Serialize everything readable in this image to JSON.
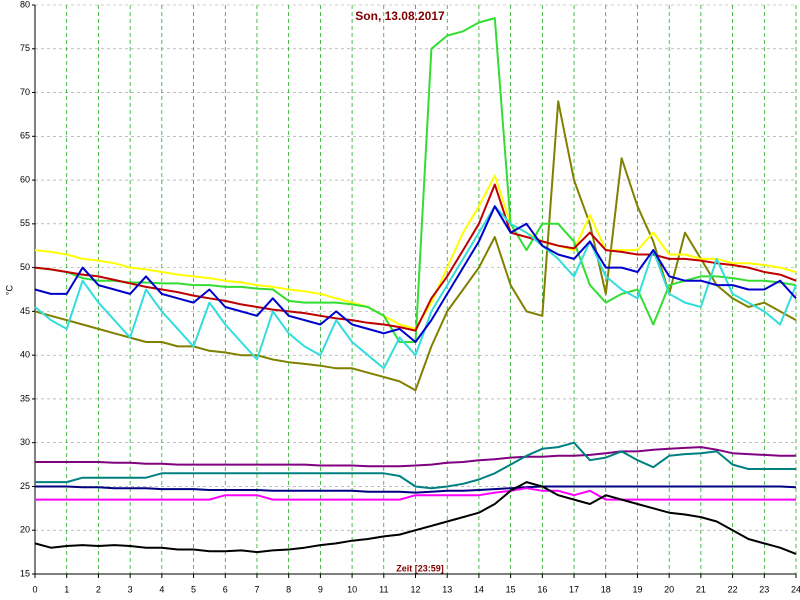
{
  "chart_data": {
    "type": "line",
    "title": "Son, 13.08.2017",
    "y_label": "°C",
    "x_label": "Zeit [23:59]",
    "xlim": [
      0,
      24
    ],
    "ylim": [
      15,
      80
    ],
    "xticks": [
      0,
      1,
      2,
      3,
      4,
      5,
      6,
      7,
      8,
      9,
      10,
      11,
      12,
      13,
      14,
      15,
      16,
      17,
      18,
      19,
      20,
      21,
      22,
      23,
      24
    ],
    "yticks": [
      15,
      20,
      25,
      30,
      35,
      40,
      45,
      50,
      55,
      60,
      65,
      70,
      75,
      80
    ],
    "grid": true,
    "x": [
      0,
      0.5,
      1,
      1.5,
      2,
      2.5,
      3,
      3.5,
      4,
      4.5,
      5,
      5.5,
      6,
      6.5,
      7,
      7.5,
      8,
      8.5,
      9,
      9.5,
      10,
      10.5,
      11,
      11.5,
      12,
      12.5,
      13,
      13.5,
      14,
      14.5,
      15,
      15.5,
      16,
      16.5,
      17,
      17.5,
      18,
      18.5,
      19,
      19.5,
      20,
      20.5,
      21,
      21.5,
      22,
      22.5,
      23,
      23.5,
      24
    ],
    "series": [
      {
        "color": "#808000",
        "values": [
          45,
          44.5,
          44,
          43.5,
          43,
          42.5,
          42,
          41.5,
          41.5,
          41,
          41,
          40.5,
          40.3,
          40,
          40,
          39.5,
          39.2,
          39,
          38.8,
          38.5,
          38.5,
          38,
          37.5,
          37,
          36,
          41,
          45,
          47.5,
          50,
          53.5,
          48,
          45,
          44.5,
          69,
          60,
          55,
          47,
          62.5,
          57,
          53,
          47,
          54,
          51,
          48,
          46.5,
          45.5,
          46,
          45,
          44
        ]
      },
      {
        "color": "#ffff00",
        "values": [
          52,
          51.8,
          51.5,
          51,
          50.8,
          50.5,
          50,
          49.8,
          49.5,
          49.2,
          49,
          48.8,
          48.5,
          48.3,
          48,
          47.8,
          47.5,
          47.3,
          47,
          46.5,
          46,
          45.5,
          44.5,
          43.5,
          43,
          46,
          50,
          54,
          57,
          60.5,
          55,
          54,
          53,
          52.5,
          52,
          56,
          52,
          52,
          52,
          54,
          51.5,
          51.5,
          51,
          51,
          50.5,
          50.5,
          50.3,
          50,
          49.5
        ]
      },
      {
        "color": "#33dd33",
        "values": [
          50,
          49.8,
          49.5,
          48.8,
          48.5,
          48.5,
          48.3,
          48.3,
          48.2,
          48.2,
          48,
          48,
          47.8,
          47.8,
          47.6,
          47.5,
          46.2,
          46,
          46,
          46,
          45.8,
          45.5,
          44.5,
          41.5,
          41.5,
          75,
          76.5,
          77,
          78,
          78.5,
          55,
          52,
          55,
          55,
          53,
          48,
          46,
          47,
          47.5,
          43.5,
          48,
          48.5,
          49,
          49,
          48.8,
          48.5,
          48.5,
          48.3,
          48
        ]
      },
      {
        "color": "#c00000",
        "values": [
          50,
          49.8,
          49.5,
          49.2,
          49,
          48.6,
          48.2,
          47.8,
          47.5,
          47.2,
          46.8,
          46.5,
          46.2,
          45.8,
          45.5,
          45.2,
          45,
          44.8,
          44.5,
          44.2,
          44,
          43.7,
          43.5,
          43.2,
          42.8,
          46.5,
          49,
          52,
          55,
          59.5,
          54,
          53.5,
          53,
          52.5,
          52.2,
          54,
          52,
          51.8,
          51.5,
          51.5,
          51,
          51,
          50.8,
          50.5,
          50.3,
          50,
          49.5,
          49.2,
          48.5
        ]
      },
      {
        "color": "#33dddd",
        "values": [
          45.5,
          44,
          43,
          48.5,
          46,
          44,
          42,
          47.5,
          45,
          43,
          41,
          46,
          43.5,
          41.5,
          39.5,
          45,
          42.5,
          41,
          40,
          44,
          41.5,
          40,
          38.5,
          42,
          40,
          45,
          48,
          51,
          54,
          57,
          55,
          54,
          52.5,
          51,
          49,
          53,
          49,
          47.5,
          46.5,
          52,
          47,
          46,
          45.5,
          51,
          47,
          46,
          45,
          43.5,
          48
        ]
      },
      {
        "color": "#0000cc",
        "values": [
          47.5,
          47,
          47,
          50,
          48,
          47.5,
          47,
          49,
          47,
          46.5,
          46,
          47.5,
          45.5,
          45,
          44.5,
          46.5,
          44.5,
          44,
          43.5,
          45,
          43.5,
          43,
          42.5,
          43,
          41.5,
          44,
          47,
          50,
          53,
          57,
          54,
          55,
          52.5,
          51.5,
          51,
          53,
          50,
          50,
          49.5,
          52,
          49,
          48.5,
          48.5,
          48,
          48,
          47.5,
          47.5,
          48.5,
          46.5
        ]
      },
      {
        "color": "#800080",
        "values": [
          27.8,
          27.8,
          27.8,
          27.8,
          27.8,
          27.7,
          27.7,
          27.6,
          27.6,
          27.5,
          27.5,
          27.5,
          27.5,
          27.5,
          27.5,
          27.5,
          27.5,
          27.5,
          27.4,
          27.4,
          27.4,
          27.3,
          27.3,
          27.3,
          27.4,
          27.5,
          27.7,
          27.8,
          28,
          28.1,
          28.3,
          28.4,
          28.4,
          28.5,
          28.5,
          28.6,
          28.8,
          29,
          29,
          29.2,
          29.3,
          29.4,
          29.5,
          29.2,
          28.8,
          28.7,
          28.6,
          28.5,
          28.5
        ]
      },
      {
        "color": "#008080",
        "values": [
          25.5,
          25.5,
          25.5,
          26,
          26,
          26,
          26,
          26,
          26.5,
          26.5,
          26.5,
          26.5,
          26.5,
          26.5,
          26.5,
          26.5,
          26.5,
          26.5,
          26.5,
          26.5,
          26.5,
          26.5,
          26.5,
          26.2,
          25,
          24.8,
          25,
          25.3,
          25.8,
          26.5,
          27.5,
          28.5,
          29.3,
          29.5,
          30,
          28,
          28.3,
          29,
          28,
          27.2,
          28.5,
          28.7,
          28.8,
          29,
          27.5,
          27,
          27,
          27,
          27
        ]
      },
      {
        "color": "#000080",
        "values": [
          25,
          25,
          25,
          24.9,
          24.9,
          24.8,
          24.8,
          24.8,
          24.7,
          24.7,
          24.7,
          24.6,
          24.6,
          24.6,
          24.6,
          24.5,
          24.5,
          24.5,
          24.5,
          24.5,
          24.5,
          24.4,
          24.4,
          24.4,
          24.3,
          24.4,
          24.5,
          24.5,
          24.6,
          24.7,
          24.8,
          24.9,
          25,
          25,
          25,
          25,
          25,
          25,
          25,
          25,
          25,
          25,
          25,
          25,
          25,
          25,
          25,
          25,
          24.9
        ]
      },
      {
        "color": "#ff00ff",
        "values": [
          23.5,
          23.5,
          23.5,
          23.5,
          23.5,
          23.5,
          23.5,
          23.5,
          23.5,
          23.5,
          23.5,
          23.5,
          24,
          24,
          24,
          23.5,
          23.5,
          23.5,
          23.5,
          23.5,
          23.5,
          23.5,
          23.5,
          23.5,
          24,
          24,
          24,
          24,
          24,
          24.3,
          24.5,
          24.8,
          24.5,
          24.5,
          24,
          24.5,
          23.5,
          23.5,
          23.5,
          23.5,
          23.5,
          23.5,
          23.5,
          23.5,
          23.5,
          23.5,
          23.5,
          23.5,
          23.5
        ]
      },
      {
        "color": "#000000",
        "values": [
          18.5,
          18,
          18.2,
          18.3,
          18.2,
          18.3,
          18.2,
          18,
          18,
          17.8,
          17.8,
          17.6,
          17.6,
          17.7,
          17.5,
          17.7,
          17.8,
          18,
          18.3,
          18.5,
          18.8,
          19,
          19.3,
          19.5,
          20,
          20.5,
          21,
          21.5,
          22,
          23,
          24.5,
          25.5,
          25,
          24,
          23.5,
          23,
          24,
          23.5,
          23,
          22.5,
          22,
          21.8,
          21.5,
          21,
          20,
          19,
          18.5,
          18,
          17.3
        ]
      }
    ]
  }
}
